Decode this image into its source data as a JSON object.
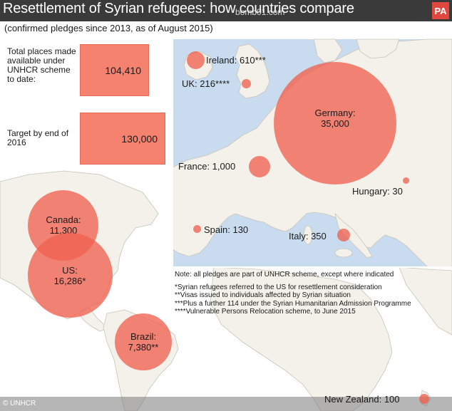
{
  "header": {
    "title": "Resettlement of Syrian refugees: how countries compare",
    "watermark": "bomb01.com",
    "logo": "PA",
    "subtitle": "(confirmed pledges since 2013, as of August 2015)"
  },
  "stats": {
    "total": {
      "label": "Total places made available under UNHCR scheme to date:",
      "value": "104,410"
    },
    "target": {
      "label": "Target by end of 2016",
      "value": "130,000"
    }
  },
  "bubbles": {
    "germany": {
      "name": "Germany:",
      "value": "35,000"
    },
    "ireland": "Ireland: 610***",
    "uk": "UK: 216****",
    "france": "France: 1,000",
    "hungary": "Hungary: 30",
    "spain": "Spain: 130",
    "italy": "Italy: 350",
    "canada": {
      "name": "Canada:",
      "value": "11,300"
    },
    "us": {
      "name": "US:",
      "value": "16,286*"
    },
    "brazil": {
      "name": "Brazil:",
      "value": "7,380**"
    },
    "new_zealand": "New Zealand: 100"
  },
  "notes": {
    "main": "Note: all pledges are part of UNHCR scheme, except where indicated",
    "f1": "*Syrian refugees referred to the US for resettlement consideration",
    "f2": "**Visas issued to individuals affected by Syrian situation",
    "f3": "***Plus a further 114 under the Syrian Humanitarian Admission Programme",
    "f4": "****Vulnerable Persons Relocation scheme, to June 2015"
  },
  "source": "© UNHCR",
  "colors": {
    "bubble": "#f06250",
    "land": "#f3f1ea",
    "water": "#c9dcef",
    "titlebar": "#3a3a3a",
    "logo": "#e0473f"
  }
}
